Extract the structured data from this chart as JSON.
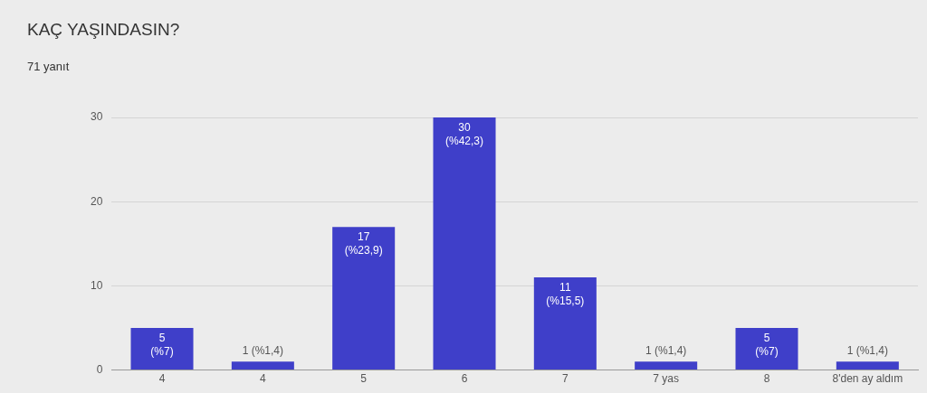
{
  "chart_data": {
    "type": "bar",
    "title": "KAÇ YAŞINDASIN?",
    "subtitle": "71 yanıt",
    "categories": [
      "4",
      "4",
      "5",
      "6",
      "7",
      "7 yas",
      "8",
      "8'den ay aldım"
    ],
    "values": [
      5,
      1,
      17,
      30,
      11,
      1,
      5,
      1
    ],
    "value_labels": [
      "5 (%7)",
      "1 (%1,4)",
      "17 (%23,9)",
      "30 (%42,3)",
      "11 (%15,5)",
      "1 (%1,4)",
      "5 (%7)",
      "1 (%1,4)"
    ],
    "color": "#3f3fc9",
    "ylim": [
      0,
      30
    ],
    "yticks": [
      0,
      10,
      20,
      30
    ],
    "grid": "y",
    "legend": false
  }
}
